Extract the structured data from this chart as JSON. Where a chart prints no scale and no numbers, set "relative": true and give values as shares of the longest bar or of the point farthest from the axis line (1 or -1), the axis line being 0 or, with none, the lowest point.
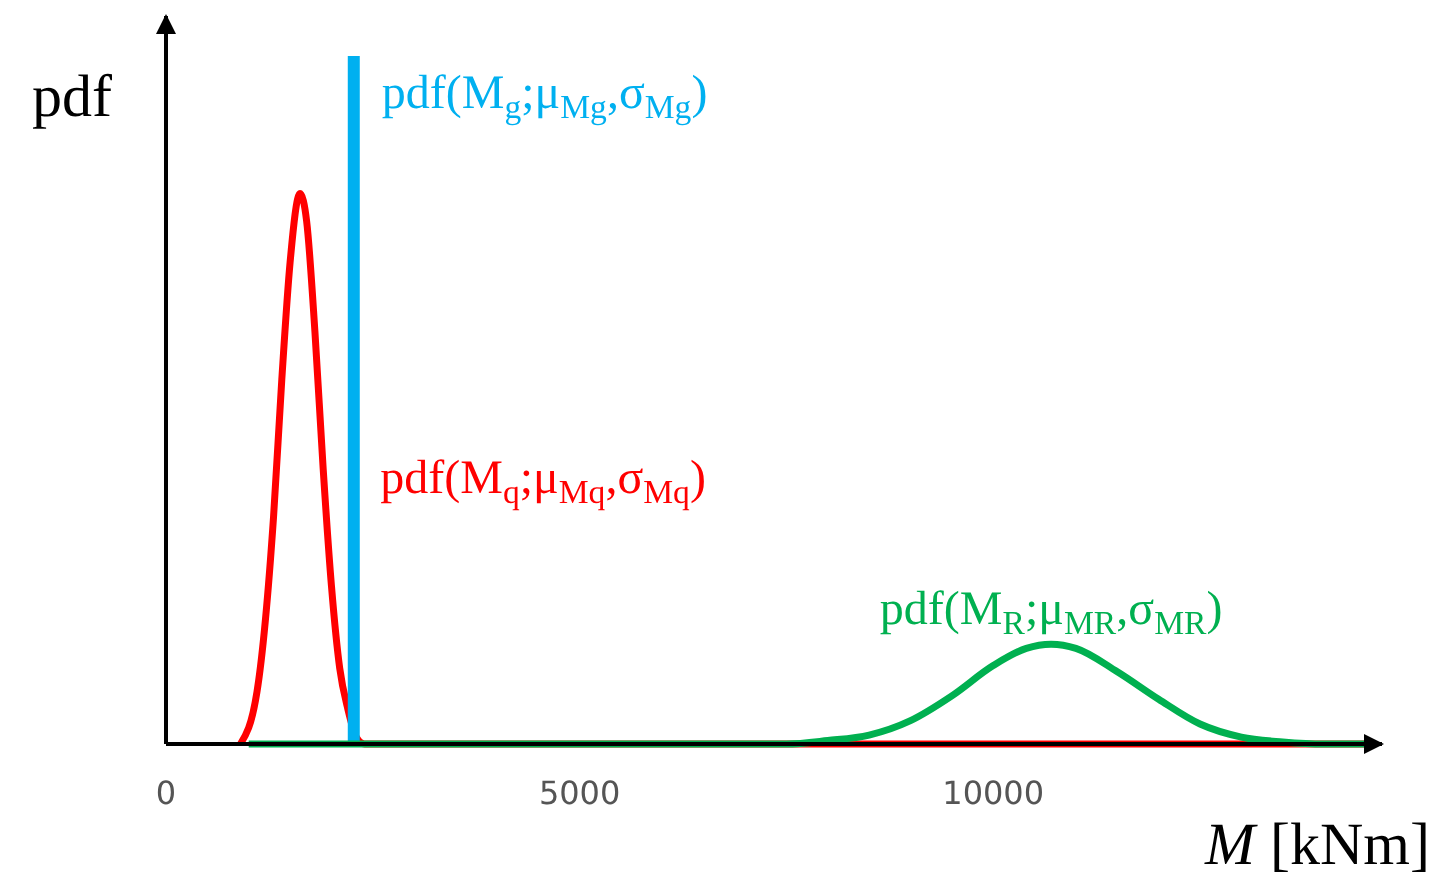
{
  "chart_data": {
    "type": "line",
    "relative": true,
    "xlabel": "M [kNm]",
    "ylabel": "pdf",
    "xlim": [
      0,
      14700
    ],
    "xticks": [
      0,
      5000,
      10000
    ],
    "grid": false,
    "line_style": "solid",
    "series": [
      {
        "name": "pdf(M$_{q}$;μ$_{Mq}$,σ$_{Mq}$)",
        "color": "#ff0000",
        "x": [
          900,
          1100,
          1300,
          1400,
          1500,
          1620,
          1700,
          1800,
          1900,
          2000,
          2100,
          2200,
          2300,
          2400,
          14600
        ],
        "values": [
          0,
          0.076,
          0.33,
          0.53,
          0.7,
          0.8,
          0.76,
          0.6,
          0.4,
          0.23,
          0.11,
          0.05,
          0.01,
          0,
          0
        ]
      },
      {
        "name": "pdf(M$_{g}$;μ$_{Mg}$,σ$_{Mg}$)",
        "color": "#00b0f0",
        "x": [
          2270,
          2270
        ],
        "values": [
          0,
          1
        ]
      },
      {
        "name": "pdf(M$_{R}$;μ$_{MR}$,σ$_{MR}$)",
        "color": "#00b050",
        "x": [
          1000,
          7500,
          8000,
          8500,
          9000,
          9500,
          10000,
          10400,
          10700,
          11000,
          11500,
          12000,
          12500,
          13000,
          13500,
          14000,
          14600
        ],
        "values": [
          0,
          0,
          0.005,
          0.013,
          0.034,
          0.07,
          0.114,
          0.139,
          0.145,
          0.139,
          0.105,
          0.065,
          0.029,
          0.01,
          0.003,
          0,
          0
        ]
      }
    ]
  }
}
